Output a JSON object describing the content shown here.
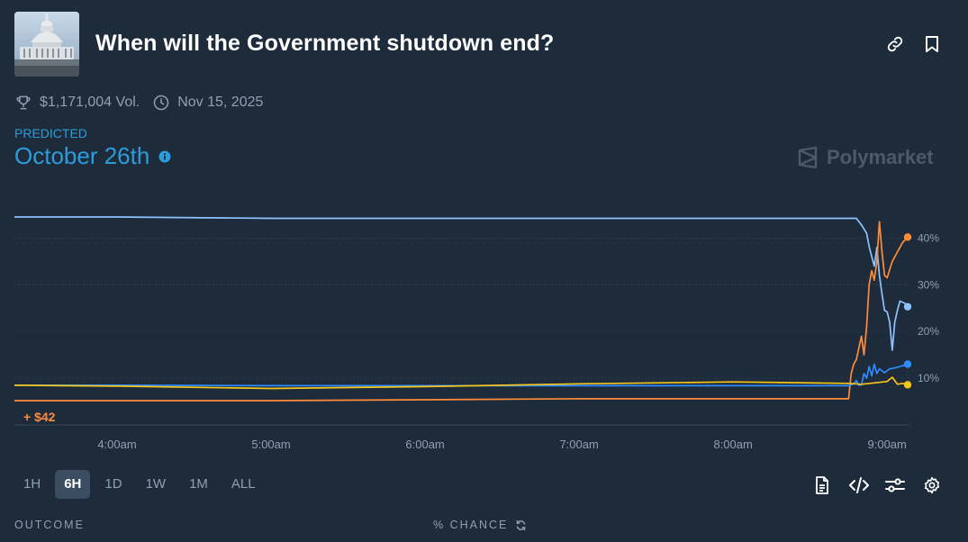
{
  "market": {
    "title": "When will the Government shutdown end?",
    "volume": "$1,171,004 Vol.",
    "end_date": "Nov 15, 2025",
    "icons": [
      "capitol-thumbnail",
      "link-icon",
      "bookmark-icon",
      "trophy-icon",
      "clock-icon"
    ]
  },
  "prediction": {
    "label": "PREDICTED",
    "value": "October 26th",
    "color": "#2d9cdb"
  },
  "brand": {
    "name": "Polymarket"
  },
  "chart_data": {
    "type": "line",
    "x_ticks": [
      "4:00am",
      "5:00am",
      "6:00am",
      "7:00am",
      "8:00am",
      "9:00am"
    ],
    "y_ticks": [
      "10%",
      "20%",
      "30%",
      "40%"
    ],
    "y_axis_side": "right",
    "grid": "horizontal dotted",
    "annotation": "+ $42",
    "series": [
      {
        "color": "#8fc3ff",
        "points": [
          [
            "3:20am",
            44.5
          ],
          [
            "4:00am",
            44.5
          ],
          [
            "5:00am",
            44.2
          ],
          [
            "6:00am",
            44.2
          ],
          [
            "7:00am",
            44.2
          ],
          [
            "8:00am",
            44.2
          ],
          [
            "8:48am",
            44.2
          ],
          [
            "8:50am",
            42.8
          ],
          [
            "8:52am",
            41
          ],
          [
            "8:53am",
            38.2
          ],
          [
            "8:54am",
            36
          ],
          [
            "8:55am",
            34
          ],
          [
            "8:56am",
            38
          ],
          [
            "8:57am",
            32
          ],
          [
            "8:58am",
            28
          ],
          [
            "8:59am",
            24.5
          ],
          [
            "9:00am",
            24.2
          ],
          [
            "9:01am",
            22
          ],
          [
            "9:02am",
            16
          ],
          [
            "9:03am",
            22
          ],
          [
            "9:04am",
            24.5
          ],
          [
            "9:05am",
            26.5
          ],
          [
            "9:07am",
            26
          ],
          [
            "9:08am",
            25.3
          ]
        ]
      },
      {
        "color": "#ff8c3a",
        "points": [
          [
            "3:20am",
            5.2
          ],
          [
            "4:00am",
            5.2
          ],
          [
            "5:00am",
            5.2
          ],
          [
            "6:00am",
            5.4
          ],
          [
            "7:00am",
            5.6
          ],
          [
            "8:00am",
            5.6
          ],
          [
            "8:45am",
            5.6
          ],
          [
            "8:46am",
            11
          ],
          [
            "8:47am",
            13
          ],
          [
            "8:48am",
            14
          ],
          [
            "8:50am",
            19
          ],
          [
            "8:51am",
            15
          ],
          [
            "8:52am",
            21
          ],
          [
            "8:53am",
            30
          ],
          [
            "8:54am",
            33
          ],
          [
            "8:55am",
            31
          ],
          [
            "8:56am",
            35
          ],
          [
            "8:57am",
            43.5
          ],
          [
            "8:58am",
            37
          ],
          [
            "8:59am",
            32
          ],
          [
            "9:00am",
            31.5
          ],
          [
            "9:02am",
            35
          ],
          [
            "9:04am",
            37
          ],
          [
            "9:06am",
            39
          ],
          [
            "9:08am",
            40.2
          ]
        ]
      },
      {
        "color": "#2f8bff",
        "points": [
          [
            "3:20am",
            8.5
          ],
          [
            "4:00am",
            8.5
          ],
          [
            "5:00am",
            8.4
          ],
          [
            "6:00am",
            8.4
          ],
          [
            "7:00am",
            8.4
          ],
          [
            "8:00am",
            8.4
          ],
          [
            "8:45am",
            8.4
          ],
          [
            "8:47am",
            8.8
          ],
          [
            "8:48am",
            9.5
          ],
          [
            "8:49am",
            8.5
          ],
          [
            "8:50am",
            8.6
          ],
          [
            "8:51am",
            11
          ],
          [
            "8:52am",
            10
          ],
          [
            "8:53am",
            12.5
          ],
          [
            "8:54am",
            10.5
          ],
          [
            "8:55am",
            13
          ],
          [
            "8:56am",
            11
          ],
          [
            "8:57am",
            12
          ],
          [
            "8:59am",
            11.2
          ],
          [
            "9:01am",
            12
          ],
          [
            "9:03am",
            12.2
          ],
          [
            "9:05am",
            12.5
          ],
          [
            "9:08am",
            13
          ]
        ]
      },
      {
        "color": "#f5c518",
        "points": [
          [
            "3:20am",
            8.5
          ],
          [
            "4:00am",
            8.3
          ],
          [
            "5:00am",
            7.8
          ],
          [
            "6:00am",
            8.2
          ],
          [
            "7:00am",
            8.8
          ],
          [
            "8:00am",
            9.2
          ],
          [
            "8:45am",
            8.9
          ],
          [
            "8:50am",
            8.7
          ],
          [
            "8:55am",
            9
          ],
          [
            "9:00am",
            9.3
          ],
          [
            "9:02am",
            10.2
          ],
          [
            "9:04am",
            8.7
          ],
          [
            "9:06am",
            8.9
          ],
          [
            "9:08am",
            8.6
          ]
        ]
      }
    ]
  },
  "timeframes": {
    "items": [
      "1H",
      "6H",
      "1D",
      "1W",
      "1M",
      "ALL"
    ],
    "selected": "6H"
  },
  "toolbar": {
    "icons": [
      "document-icon",
      "embed-code-icon",
      "sliders-icon",
      "settings-gear-icon"
    ]
  },
  "table": {
    "outcome_header": "OUTCOME",
    "chance_header": "% CHANCE"
  }
}
